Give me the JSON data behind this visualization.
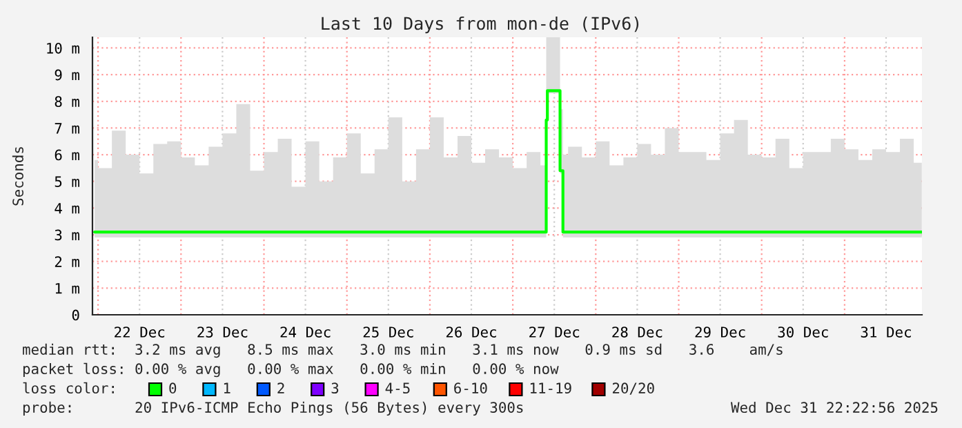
{
  "chart_data": {
    "type": "step",
    "title": "Last 10 Days from mon-de (IPv6)",
    "ylabel": "Seconds",
    "x": [
      "2025-12-21T23:00",
      "2025-12-22T00:00",
      "2025-12-22T04:00",
      "2025-12-22T08:00",
      "2025-12-22T12:00",
      "2025-12-22T16:00",
      "2025-12-22T20:00",
      "2025-12-23T00:00",
      "2025-12-23T04:00",
      "2025-12-23T08:00",
      "2025-12-23T12:00",
      "2025-12-23T16:00",
      "2025-12-23T20:00",
      "2025-12-24T00:00",
      "2025-12-24T04:00",
      "2025-12-24T08:00",
      "2025-12-24T12:00",
      "2025-12-24T16:00",
      "2025-12-24T20:00",
      "2025-12-25T00:00",
      "2025-12-25T04:00",
      "2025-12-25T08:00",
      "2025-12-25T12:00",
      "2025-12-25T16:00",
      "2025-12-25T20:00",
      "2025-12-26T00:00",
      "2025-12-26T04:00",
      "2025-12-26T08:00",
      "2025-12-26T12:00",
      "2025-12-26T16:00",
      "2025-12-26T20:00",
      "2025-12-27T00:00",
      "2025-12-27T04:00",
      "2025-12-27T08:00",
      "2025-12-27T09:40",
      "2025-12-27T10:00",
      "2025-12-27T13:40",
      "2025-12-27T14:30",
      "2025-12-27T16:00",
      "2025-12-27T20:00",
      "2025-12-28T00:00",
      "2025-12-28T04:00",
      "2025-12-28T08:00",
      "2025-12-28T12:00",
      "2025-12-28T16:00",
      "2025-12-28T20:00",
      "2025-12-29T00:00",
      "2025-12-29T04:00",
      "2025-12-29T08:00",
      "2025-12-29T12:00",
      "2025-12-29T16:00",
      "2025-12-29T20:00",
      "2025-12-30T00:00",
      "2025-12-30T04:00",
      "2025-12-30T08:00",
      "2025-12-30T12:00",
      "2025-12-30T16:00",
      "2025-12-30T20:00",
      "2025-12-31T00:00",
      "2025-12-31T04:00",
      "2025-12-31T08:00",
      "2025-12-31T12:00",
      "2025-12-31T16:00",
      "2025-12-31T20:00",
      "2025-12-31T22:20"
    ],
    "series": [
      {
        "color": "#00ff00",
        "values": [
          3.1,
          3.1,
          3.1,
          3.1,
          3.1,
          3.1,
          3.1,
          3.1,
          3.1,
          3.1,
          3.1,
          3.1,
          3.1,
          3.1,
          3.1,
          3.1,
          3.1,
          3.1,
          3.1,
          3.1,
          3.1,
          3.1,
          3.1,
          3.1,
          3.1,
          3.1,
          3.1,
          3.1,
          3.1,
          3.1,
          3.1,
          3.1,
          3.1,
          3.1,
          7.3,
          8.4,
          5.4,
          3.1,
          3.1,
          3.1,
          3.1,
          3.1,
          3.1,
          3.1,
          3.1,
          3.1,
          3.1,
          3.1,
          3.1,
          3.1,
          3.1,
          3.1,
          3.1,
          3.1,
          3.1,
          3.1,
          3.1,
          3.1,
          3.1,
          3.1,
          3.1,
          3.1,
          3.1,
          3.1,
          3.1
        ],
        "lower": [
          2.9,
          2.9,
          2.9,
          2.9,
          2.9,
          2.9,
          2.9,
          2.9,
          2.9,
          2.9,
          2.9,
          2.9,
          2.9,
          2.9,
          2.9,
          2.9,
          2.9,
          2.9,
          2.9,
          2.9,
          2.9,
          2.9,
          2.9,
          2.9,
          2.9,
          2.9,
          2.9,
          2.9,
          2.9,
          2.9,
          2.9,
          2.9,
          2.9,
          2.9,
          7.1,
          8.3,
          5.3,
          2.9,
          2.9,
          2.9,
          2.9,
          2.9,
          2.9,
          2.9,
          2.9,
          2.9,
          2.9,
          2.9,
          2.9,
          2.9,
          2.9,
          2.9,
          2.9,
          2.9,
          2.9,
          2.9,
          2.9,
          2.9,
          2.9,
          2.9,
          2.9,
          2.9,
          2.9,
          2.9,
          2.9
        ],
        "upper": [
          5.8,
          5.5,
          6.9,
          6.0,
          5.3,
          6.4,
          6.5,
          5.9,
          5.6,
          6.3,
          6.8,
          7.9,
          5.4,
          6.1,
          6.6,
          4.8,
          6.5,
          5.0,
          5.9,
          6.8,
          5.3,
          6.2,
          7.4,
          5.0,
          6.2,
          7.4,
          5.9,
          6.7,
          5.7,
          6.2,
          5.9,
          5.5,
          6.1,
          5.6,
          10.4,
          10.4,
          7.7,
          6.0,
          6.3,
          5.9,
          6.5,
          5.6,
          5.9,
          6.4,
          6.0,
          7.0,
          6.1,
          6.1,
          5.8,
          6.8,
          7.3,
          6.0,
          5.9,
          6.6,
          5.5,
          6.1,
          6.1,
          6.6,
          6.2,
          5.8,
          6.2,
          6.1,
          6.6,
          5.7,
          5.4
        ]
      }
    ],
    "xlim": [
      "2025-12-21T22:23",
      "2025-12-31T22:23"
    ],
    "xticks": [
      {
        "value": "2025-12-22",
        "label": null
      },
      {
        "value": "2025-12-23",
        "label": null
      },
      {
        "value": "2025-12-24",
        "label": null
      },
      {
        "value": "2025-12-25",
        "label": null
      },
      {
        "value": "2025-12-26",
        "label": null
      },
      {
        "value": "2025-12-27",
        "label": null
      },
      {
        "value": "2025-12-28",
        "label": null
      },
      {
        "value": "2025-12-29",
        "label": null
      },
      {
        "value": "2025-12-30",
        "label": null
      },
      {
        "value": "2025-12-31",
        "label": null
      },
      {
        "value": "2025-12-22T12:00",
        "label": "22 Dec"
      },
      {
        "value": "2025-12-23T12:00",
        "label": "23 Dec"
      },
      {
        "value": "2025-12-24T12:00",
        "label": "24 Dec"
      },
      {
        "value": "2025-12-25T12:00",
        "label": "25 Dec"
      },
      {
        "value": "2025-12-26T12:00",
        "label": "26 Dec"
      },
      {
        "value": "2025-12-27T12:00",
        "label": "27 Dec"
      },
      {
        "value": "2025-12-28T12:00",
        "label": "28 Dec"
      },
      {
        "value": "2025-12-29T12:00",
        "label": "29 Dec"
      },
      {
        "value": "2025-12-30T12:00",
        "label": "30 Dec"
      },
      {
        "value": "2025-12-31T12:00",
        "label": "31 Dec"
      }
    ],
    "ylim": [
      0,
      10.4
    ],
    "yticks": [
      0,
      {
        "value": 1,
        "label": "1 m"
      },
      {
        "value": 2,
        "label": "2 m"
      },
      {
        "value": 3,
        "label": "3 m"
      },
      {
        "value": 4,
        "label": "4 m"
      },
      {
        "value": 5,
        "label": "5 m"
      },
      {
        "value": 6,
        "label": "6 m"
      },
      {
        "value": 7,
        "label": "7 m"
      },
      {
        "value": 8,
        "label": "8 m"
      },
      {
        "value": 9,
        "label": "9 m"
      },
      {
        "value": 10,
        "label": "10 m"
      }
    ],
    "grid": true,
    "annotations": [
      "median rtt:  3.2 ms avg   8.5 ms max   3.0 ms min   3.1 ms now   0.9 ms sd   3.6    am/s",
      "packet loss: 0.00 % avg   0.00 % max   0.00 % min   0.00 % now",
      "loss color:",
      "0",
      "1",
      "2",
      "3",
      "4-5",
      "6-10",
      "11-19",
      "20/20",
      "probe:       20 IPv6-ICMP Echo Pings (56 Bytes) every 300s",
      "Wed Dec 31 22:22:56 2025"
    ]
  }
}
